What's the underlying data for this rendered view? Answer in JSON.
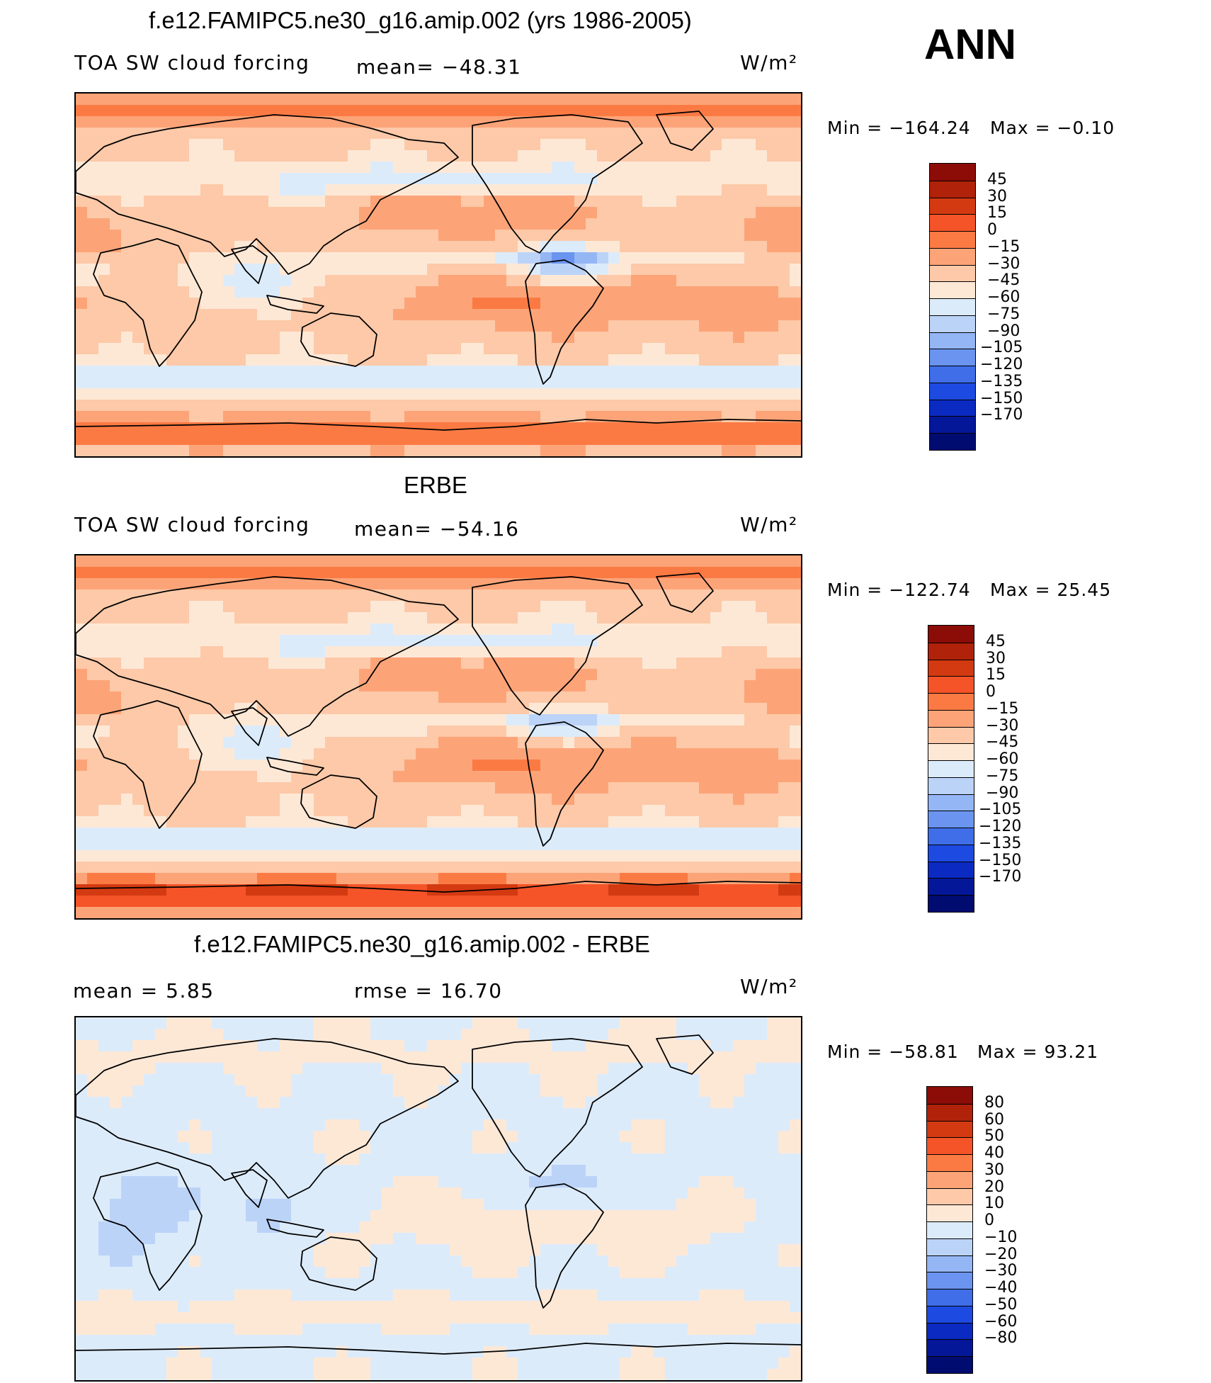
{
  "season": "ANN",
  "units": "W/m²",
  "panels": [
    {
      "id": "model",
      "title": "f.e12.FAMIPC5.ne30_g16.amip.002 (yrs 1986-2005)",
      "left_label": "TOA SW cloud forcing",
      "mid_label": "mean= −48.31",
      "units": "W/m²",
      "min_label": "Min = −164.24",
      "max_label": "Max =  −0.10",
      "colorbar_levels": [
        "45",
        "30",
        "15",
        "0",
        "−15",
        "−30",
        "−45",
        "−60",
        "−75",
        "−90",
        "−105",
        "−120",
        "−135",
        "−150",
        "−170"
      ]
    },
    {
      "id": "obs",
      "title": "ERBE",
      "left_label": "TOA SW cloud forcing",
      "mid_label": "mean= −54.16",
      "units": "W/m²",
      "min_label": "Min = −122.74",
      "max_label": "Max =  25.45",
      "colorbar_levels": [
        "45",
        "30",
        "15",
        "0",
        "−15",
        "−30",
        "−45",
        "−60",
        "−75",
        "−90",
        "−105",
        "−120",
        "−135",
        "−150",
        "−170"
      ]
    },
    {
      "id": "diff",
      "title": "f.e12.FAMIPC5.ne30_g16.amip.002 - ERBE",
      "left_label": "mean =    5.85",
      "mid_label": "rmse =   16.70",
      "units": "W/m²",
      "min_label": "Min = −58.81",
      "max_label": "Max =  93.21",
      "colorbar_levels": [
        "80",
        "60",
        "50",
        "40",
        "30",
        "20",
        "10",
        "0",
        "−10",
        "−20",
        "−30",
        "−40",
        "−50",
        "−60",
        "−80"
      ]
    }
  ],
  "colors": {
    "palette": [
      "#8c0c08",
      "#b0220a",
      "#d43a12",
      "#f55428",
      "#fb7a44",
      "#fca478",
      "#fdc9a8",
      "#fde8d6",
      "#dcebfa",
      "#bcd3f8",
      "#94b6f5",
      "#6a94ef",
      "#3f6ee8",
      "#1d4ae0",
      "#0b2ac2",
      "#041799",
      "#000c70"
    ]
  }
}
